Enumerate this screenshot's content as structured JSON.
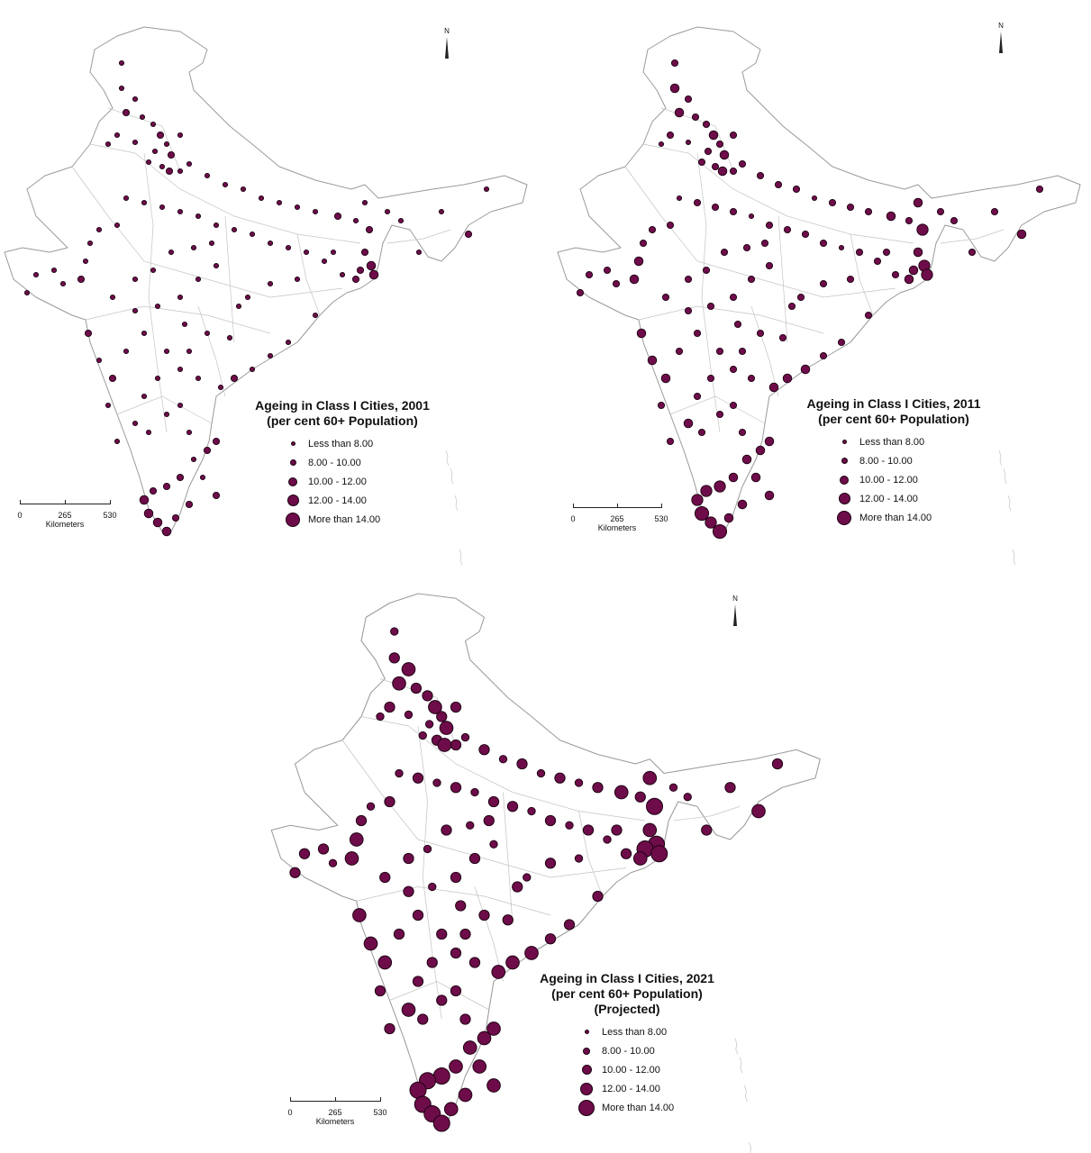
{
  "maps": [
    {
      "id": "map-2001",
      "legend": {
        "title_line1": "Ageing in Class I Cities, 2001",
        "title_line2": "(per cent 60+ Population)",
        "title_line3": "",
        "items": [
          "Less than 8.00",
          "8.00 - 10.00",
          "10.00 - 12.00",
          "12.00 - 14.00",
          "More than 14.00"
        ]
      },
      "scale": {
        "ticks": [
          "0",
          "265",
          "530"
        ],
        "unit": "Kilometers"
      },
      "north": "N"
    },
    {
      "id": "map-2011",
      "legend": {
        "title_line1": "Ageing in Class I Cities, 2011",
        "title_line2": "(per cent 60+ Population)",
        "title_line3": "",
        "items": [
          "Less than 8.00",
          "8.00 - 10.00",
          "10.00 - 12.00",
          "12.00 - 14.00",
          "More than 14.00"
        ]
      },
      "scale": {
        "ticks": [
          "0",
          "265",
          "530"
        ],
        "unit": "Kilometers"
      },
      "north": "N"
    },
    {
      "id": "map-2021",
      "legend": {
        "title_line1": "Ageing in Class I Cities, 2021",
        "title_line2": "(per cent 60+ Population)",
        "title_line3": "(Projected)",
        "items": [
          "Less than 8.00",
          "8.00 - 10.00",
          "10.00 - 12.00",
          "12.00 - 14.00",
          "More than 14.00"
        ]
      },
      "scale": {
        "ticks": [
          "0",
          "265",
          "530"
        ],
        "unit": "Kilometers"
      },
      "north": "N"
    }
  ],
  "colors": {
    "symbol_fill": "#6e0c4a",
    "symbol_stroke": "#1a0010",
    "boundary": "#9a9a9a"
  }
}
